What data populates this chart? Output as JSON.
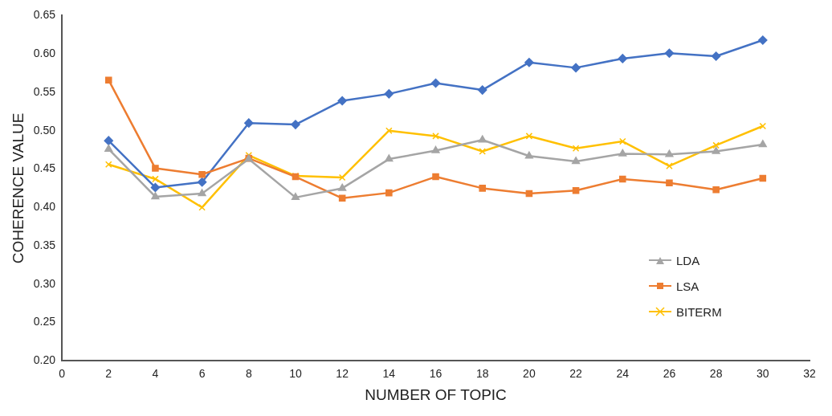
{
  "chart_data": {
    "type": "line",
    "xlabel": "NUMBER OF TOPIC",
    "ylabel": "COHERENCE VALUE",
    "x": [
      2,
      4,
      6,
      8,
      10,
      12,
      14,
      16,
      18,
      20,
      22,
      24,
      26,
      28,
      30
    ],
    "xlim": [
      0,
      32
    ],
    "xticks": [
      0,
      2,
      4,
      6,
      8,
      10,
      12,
      14,
      16,
      18,
      20,
      22,
      24,
      26,
      28,
      30,
      32
    ],
    "ylim": [
      0.2,
      0.65
    ],
    "yticks": [
      {
        "value": 0.2,
        "label": "0.20"
      },
      {
        "value": 0.25,
        "label": "0.25"
      },
      {
        "value": 0.3,
        "label": "0.30"
      },
      {
        "value": 0.35,
        "label": "0.35"
      },
      {
        "value": 0.4,
        "label": "0.40"
      },
      {
        "value": 0.45,
        "label": "0.45"
      },
      {
        "value": 0.5,
        "label": "0.50"
      },
      {
        "value": 0.55,
        "label": "0.55"
      },
      {
        "value": 0.6,
        "label": "0.60"
      },
      {
        "value": 0.65,
        "label": "0.65"
      }
    ],
    "grid": false,
    "legend": "right",
    "series": [
      {
        "name": "LDA",
        "color": "#a5a5a5",
        "marker": "triangle",
        "values": [
          0.476,
          0.414,
          0.418,
          0.463,
          0.413,
          0.425,
          0.463,
          0.474,
          0.488,
          0.467,
          0.46,
          0.47,
          0.469,
          0.473,
          0.482
        ]
      },
      {
        "name": "LSA",
        "color": "#ed7d31",
        "marker": "square",
        "values": [
          0.566,
          0.451,
          0.443,
          0.464,
          0.44,
          0.412,
          0.419,
          0.44,
          0.425,
          0.418,
          0.422,
          0.437,
          0.432,
          0.423,
          0.438
        ]
      },
      {
        "color": "#4472c4",
        "marker": "diamond",
        "values": [
          0.487,
          0.426,
          0.433,
          0.51,
          0.508,
          0.539,
          0.548,
          0.562,
          0.553,
          0.589,
          0.582,
          0.594,
          0.601,
          0.597,
          0.618
        ]
      },
      {
        "name": "BITERM",
        "color": "#ffc000",
        "marker": "cross",
        "values": [
          0.456,
          0.437,
          0.4,
          0.468,
          0.441,
          0.439,
          0.5,
          0.493,
          0.473,
          0.493,
          0.477,
          0.486,
          0.454,
          0.481,
          0.506
        ]
      }
    ]
  }
}
